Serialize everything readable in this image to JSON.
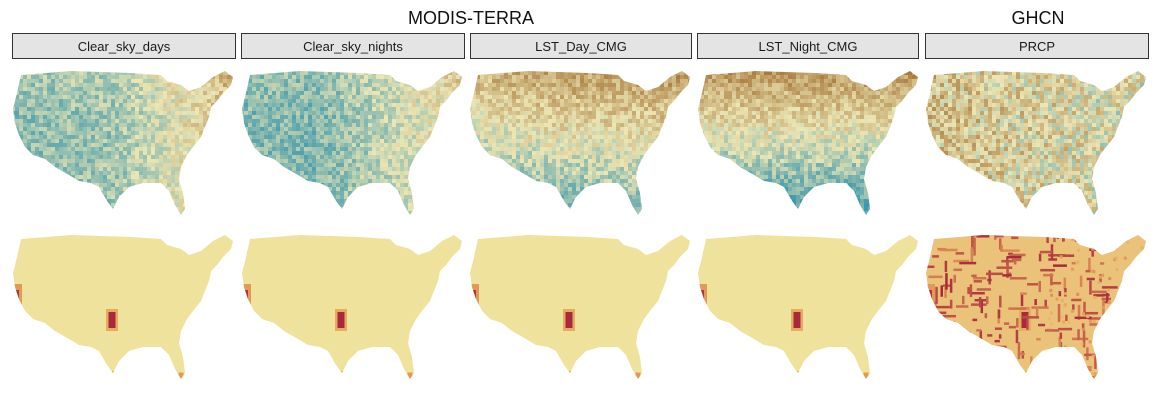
{
  "figure": {
    "group_titles": [
      "MODIS-TERRA",
      "GHCN"
    ],
    "panels": [
      {
        "label": "Clear_sky_days",
        "group": "MODIS-TERRA"
      },
      {
        "label": "Clear_sky_nights",
        "group": "MODIS-TERRA"
      },
      {
        "label": "LST_Day_CMG",
        "group": "MODIS-TERRA"
      },
      {
        "label": "LST_Night_CMG",
        "group": "MODIS-TERRA"
      },
      {
        "label": "PRCP",
        "group": "GHCN"
      }
    ]
  },
  "chart_data": {
    "type": "heatmap",
    "subject": "contiguous United States maps",
    "rows": 2,
    "columns": [
      "Clear_sky_days",
      "Clear_sky_nights",
      "LST_Day_CMG",
      "LST_Night_CMG",
      "PRCP"
    ],
    "colors": {
      "teal": "#3f99ac",
      "pale": "#ece6b4",
      "brown": "#a8793c",
      "light_yellow": "#f0e7a3",
      "orange": "#e6a55a",
      "dark_red": "#a8283c",
      "strip_fill": "#e4e4e4"
    },
    "top_row_palette": [
      "#3f99ac",
      "#ece6b4",
      "#a8793c"
    ],
    "bottom_row_palette": [
      "#f0e7a3",
      "#e6a55a",
      "#a8283c"
    ]
  }
}
